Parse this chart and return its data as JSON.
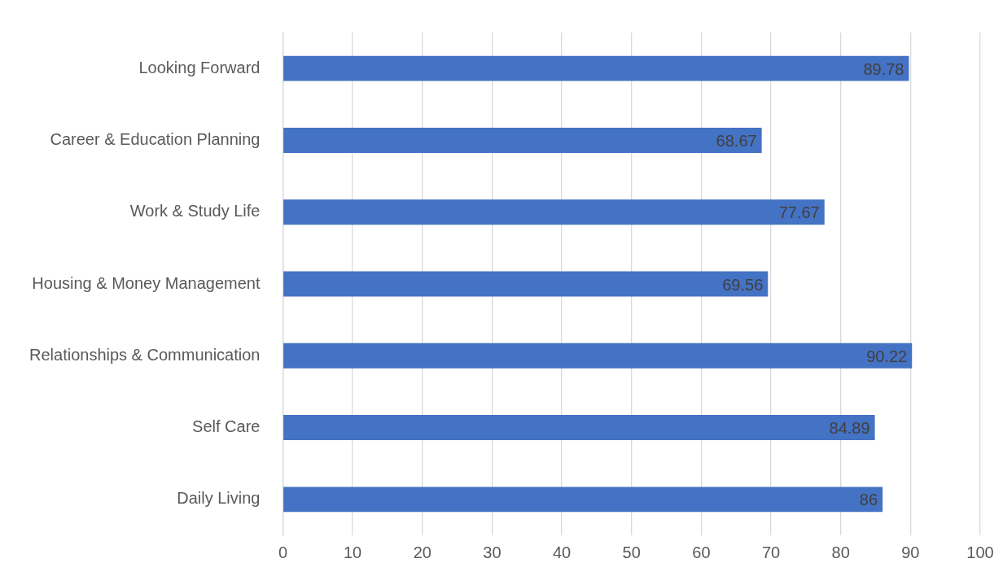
{
  "chart_data": {
    "type": "bar",
    "orientation": "horizontal",
    "categories": [
      "Looking Forward",
      "Career & Education Planning",
      "Work & Study Life",
      "Housing & Money Management",
      "Relationships & Communication",
      "Self Care",
      "Daily Living"
    ],
    "values": [
      89.78,
      68.67,
      77.67,
      69.56,
      90.22,
      84.89,
      86
    ],
    "color": "#4472c4",
    "xlim": [
      0,
      100
    ],
    "xticks": [
      0,
      10,
      20,
      30,
      40,
      50,
      60,
      70,
      80,
      90,
      100
    ],
    "grid": "x",
    "data_labels": true,
    "legend": false
  }
}
